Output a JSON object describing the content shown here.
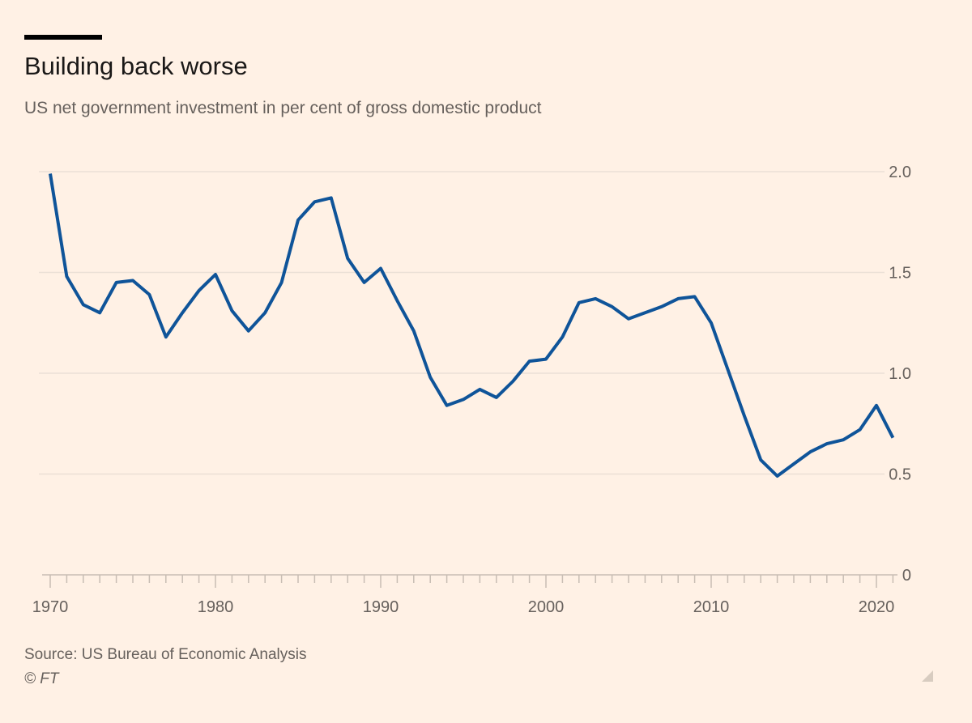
{
  "title": "Building back worse",
  "subtitle": "US net government investment in per cent of gross domestic product",
  "source": "Source: US Bureau of Economic Analysis",
  "copyright": "© FT",
  "colors": {
    "background": "#fff1e5",
    "line": "#0f5499",
    "grid": "#ebe0d6",
    "text": "#66605c"
  },
  "chart_data": {
    "type": "line",
    "title": "Building back worse",
    "subtitle": "US net government investment in per cent of gross domestic product",
    "xlabel": "",
    "ylabel": "",
    "xlim": [
      1970,
      2021
    ],
    "ylim": [
      0,
      2.0
    ],
    "grid": true,
    "y_axis_side": "right",
    "x_ticks": [
      1970,
      1980,
      1990,
      2000,
      2010,
      2020
    ],
    "x_tick_labels": [
      "1970",
      "1980",
      "1990",
      "2000",
      "2010",
      "2020"
    ],
    "y_ticks": [
      0,
      0.5,
      1.0,
      1.5,
      2.0
    ],
    "y_tick_labels": [
      "0",
      "0.5",
      "1.0",
      "1.5",
      "2.0"
    ],
    "series": [
      {
        "color": "#0f5499",
        "x": [
          1970,
          1971,
          1972,
          1973,
          1974,
          1975,
          1976,
          1977,
          1978,
          1979,
          1980,
          1981,
          1982,
          1983,
          1984,
          1985,
          1986,
          1987,
          1988,
          1989,
          1990,
          1991,
          1992,
          1993,
          1994,
          1995,
          1996,
          1997,
          1998,
          1999,
          2000,
          2001,
          2002,
          2003,
          2004,
          2005,
          2006,
          2007,
          2008,
          2009,
          2010,
          2011,
          2012,
          2013,
          2014,
          2015,
          2016,
          2017,
          2018,
          2019,
          2020,
          2021
        ],
        "values": [
          1.99,
          1.48,
          1.34,
          1.3,
          1.45,
          1.46,
          1.39,
          1.18,
          1.3,
          1.41,
          1.49,
          1.31,
          1.21,
          1.3,
          1.45,
          1.76,
          1.85,
          1.87,
          1.57,
          1.45,
          1.52,
          1.36,
          1.21,
          0.98,
          0.84,
          0.87,
          0.92,
          0.88,
          0.96,
          1.06,
          1.07,
          1.18,
          1.35,
          1.37,
          1.33,
          1.27,
          1.3,
          1.33,
          1.37,
          1.38,
          1.25,
          1.02,
          0.79,
          0.57,
          0.49,
          0.55,
          0.61,
          0.65,
          0.67,
          0.72,
          0.84,
          0.68
        ]
      }
    ]
  }
}
